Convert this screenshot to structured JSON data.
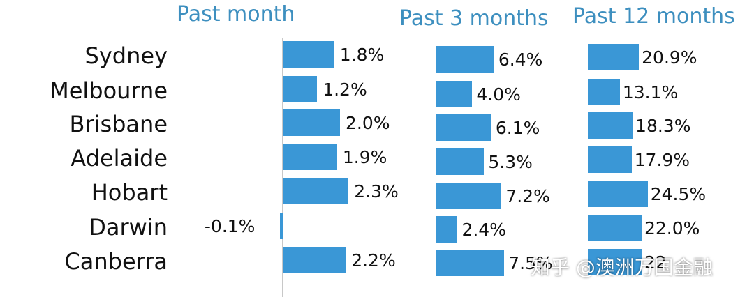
{
  "chart_data": {
    "type": "bar",
    "orientation": "horizontal",
    "categories": [
      "Sydney",
      "Melbourne",
      "Brisbane",
      "Adelaide",
      "Hobart",
      "Darwin",
      "Canberra"
    ],
    "panels": [
      {
        "title": "Past month",
        "values": [
          1.8,
          1.2,
          2.0,
          1.9,
          2.3,
          -0.1,
          2.2
        ],
        "value_labels": [
          "1.8%",
          "1.2%",
          "2.0%",
          "1.9%",
          "2.3%",
          "-0.1%",
          "2.2%"
        ]
      },
      {
        "title": "Past 3 months",
        "values": [
          6.4,
          4.0,
          6.1,
          5.3,
          7.2,
          2.4,
          7.5
        ],
        "value_labels": [
          "6.4%",
          "4.0%",
          "6.1%",
          "5.3%",
          "7.2%",
          "2.4%",
          "7.5%"
        ]
      },
      {
        "title": "Past 12 months",
        "values": [
          20.9,
          13.1,
          18.3,
          17.9,
          24.5,
          22.0,
          22.0
        ],
        "value_labels": [
          "20.9%",
          "13.1%",
          "18.3%",
          "17.9%",
          "24.5%",
          "22.0%",
          "22"
        ]
      }
    ],
    "bar_color": "#3a97d6",
    "grid": false,
    "legend": "none"
  },
  "watermark": {
    "text": "知乎 @澳洲万国金融"
  }
}
